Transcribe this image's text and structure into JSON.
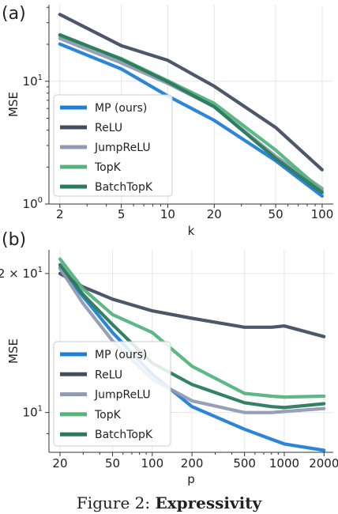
{
  "caption": {
    "prefix": "Figure 2: ",
    "bold": "Expressivity"
  },
  "chart_data": [
    {
      "type": "line",
      "panel_label": "(a)",
      "xlabel": "k",
      "ylabel": "MSE",
      "xscale": "log",
      "yscale": "log",
      "xlim": [
        1.7,
        118
      ],
      "ylim": [
        1.0,
        42
      ],
      "xticks": [
        {
          "value": 2,
          "label": "2"
        },
        {
          "value": 5,
          "label": "5"
        },
        {
          "value": 10,
          "label": "10"
        },
        {
          "value": 20,
          "label": "20"
        },
        {
          "value": 50,
          "label": "50"
        },
        {
          "value": 100,
          "label": "100"
        }
      ],
      "yticks": [
        {
          "value": 1,
          "label": "10",
          "sup": "0"
        },
        {
          "value": 10,
          "label": "10",
          "sup": "1"
        }
      ],
      "grid": true,
      "legend_position": "lower-left",
      "x": [
        2,
        5,
        10,
        20,
        50,
        100
      ],
      "series": [
        {
          "name": "MP (ours)",
          "color": "#1f7fd6",
          "values": [
            20.1,
            12.6,
            7.6,
            4.8,
            2.25,
            1.16
          ]
        },
        {
          "name": "ReLU",
          "color": "#434e63",
          "values": [
            35,
            19.5,
            14.8,
            9.1,
            4.2,
            1.9
          ]
        },
        {
          "name": "JumpReLU",
          "color": "#909bb2",
          "values": [
            22.3,
            14.1,
            9.6,
            6.2,
            2.45,
            1.34
          ]
        },
        {
          "name": "TopK",
          "color": "#55b47e",
          "values": [
            23.5,
            15.3,
            10.1,
            6.6,
            2.75,
            1.28
          ]
        },
        {
          "name": "BatchTopK",
          "color": "#2a7a5c",
          "values": [
            23.9,
            15.1,
            9.9,
            6.2,
            2.35,
            1.24
          ]
        }
      ]
    },
    {
      "type": "line",
      "panel_label": "(b)",
      "xlabel": "p",
      "ylabel": "MSE",
      "xscale": "log",
      "yscale": "log",
      "xlim": [
        16.5,
        2350
      ],
      "ylim": [
        8.2,
        22.5
      ],
      "xticks": [
        {
          "value": 20,
          "label": "20"
        },
        {
          "value": 50,
          "label": "50"
        },
        {
          "value": 100,
          "label": "100"
        },
        {
          "value": 200,
          "label": "200"
        },
        {
          "value": 500,
          "label": "500"
        },
        {
          "value": 1000,
          "label": "1000"
        },
        {
          "value": 2000,
          "label": "2000"
        }
      ],
      "yticks": [
        {
          "value": 10,
          "label": "10",
          "sup": "1"
        },
        {
          "value": 20,
          "label": "2 × 10",
          "sup": "1"
        }
      ],
      "grid": true,
      "legend_position": "lower-left",
      "x": [
        20,
        30,
        50,
        100,
        200,
        500,
        800,
        1000,
        2000
      ],
      "series": [
        {
          "name": "MP (ours)",
          "color": "#1f7fd6",
          "values": [
            20.6,
            17.8,
            14.9,
            12.1,
            10.3,
            9.2,
            8.75,
            8.55,
            8.28
          ]
        },
        {
          "name": "ReLU",
          "color": "#434e63",
          "values": [
            20.0,
            18.7,
            17.6,
            16.6,
            16.0,
            15.3,
            15.3,
            15.4,
            14.6
          ]
        },
        {
          "name": "JumpReLU",
          "color": "#909bb2",
          "values": [
            20.5,
            17.2,
            14.3,
            11.8,
            10.6,
            10.0,
            10.0,
            10.05,
            10.2
          ]
        },
        {
          "name": "TopK",
          "color": "#55b47e",
          "values": [
            21.5,
            18.5,
            16.3,
            14.9,
            12.6,
            11.0,
            10.85,
            10.8,
            10.85
          ]
        },
        {
          "name": "BatchTopK",
          "color": "#2a7a5c",
          "values": [
            20.9,
            18.0,
            15.5,
            12.8,
            11.5,
            10.5,
            10.3,
            10.25,
            10.45
          ]
        }
      ]
    }
  ]
}
